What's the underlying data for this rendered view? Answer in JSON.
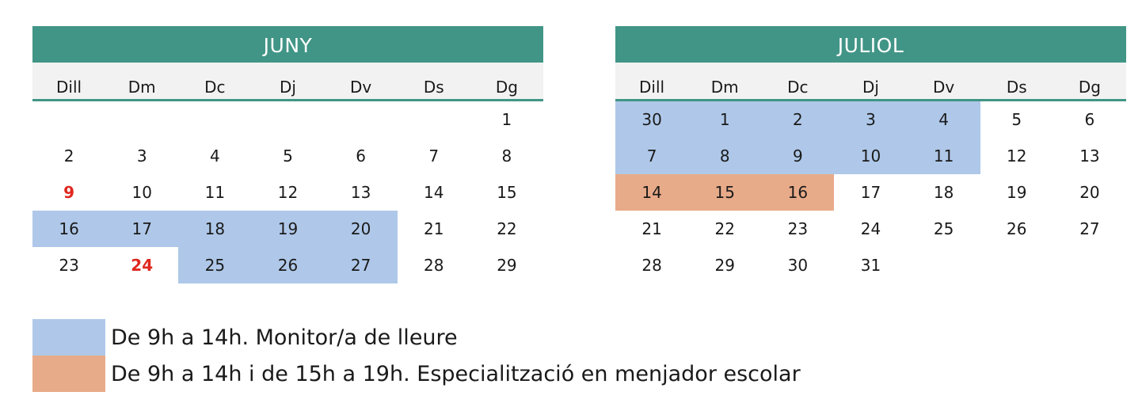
{
  "colors": {
    "header": "#419586",
    "monitor": "#afc8e9",
    "specialization": "#e8ab89",
    "holiday": "#e0271f",
    "text": "#1a1a1a"
  },
  "weekdays": [
    "Dill",
    "Dm",
    "Dc",
    "Dj",
    "Dv",
    "Ds",
    "Dg"
  ],
  "calendars": [
    {
      "title": "JUNY",
      "weeks": [
        [
          {
            "d": ""
          },
          {
            "d": ""
          },
          {
            "d": ""
          },
          {
            "d": ""
          },
          {
            "d": ""
          },
          {
            "d": ""
          },
          {
            "d": "1"
          }
        ],
        [
          {
            "d": "2"
          },
          {
            "d": "3"
          },
          {
            "d": "4"
          },
          {
            "d": "5"
          },
          {
            "d": "6"
          },
          {
            "d": "7"
          },
          {
            "d": "8"
          }
        ],
        [
          {
            "d": "9",
            "h": true
          },
          {
            "d": "10"
          },
          {
            "d": "11"
          },
          {
            "d": "12"
          },
          {
            "d": "13"
          },
          {
            "d": "14"
          },
          {
            "d": "15"
          }
        ],
        [
          {
            "d": "16",
            "t": "monitor"
          },
          {
            "d": "17",
            "t": "monitor"
          },
          {
            "d": "18",
            "t": "monitor"
          },
          {
            "d": "19",
            "t": "monitor"
          },
          {
            "d": "20",
            "t": "monitor"
          },
          {
            "d": "21"
          },
          {
            "d": "22"
          }
        ],
        [
          {
            "d": "23"
          },
          {
            "d": "24",
            "h": true
          },
          {
            "d": "25",
            "t": "monitor"
          },
          {
            "d": "26",
            "t": "monitor"
          },
          {
            "d": "27",
            "t": "monitor"
          },
          {
            "d": "28"
          },
          {
            "d": "29"
          }
        ]
      ]
    },
    {
      "title": "JULIOL",
      "weeks": [
        [
          {
            "d": "30",
            "t": "monitor"
          },
          {
            "d": "1",
            "t": "monitor"
          },
          {
            "d": "2",
            "t": "monitor"
          },
          {
            "d": "3",
            "t": "monitor"
          },
          {
            "d": "4",
            "t": "monitor"
          },
          {
            "d": "5"
          },
          {
            "d": "6"
          }
        ],
        [
          {
            "d": "7",
            "t": "monitor"
          },
          {
            "d": "8",
            "t": "monitor"
          },
          {
            "d": "9",
            "t": "monitor"
          },
          {
            "d": "10",
            "t": "monitor"
          },
          {
            "d": "11",
            "t": "monitor"
          },
          {
            "d": "12"
          },
          {
            "d": "13"
          }
        ],
        [
          {
            "d": "14",
            "t": "specialization"
          },
          {
            "d": "15",
            "t": "specialization"
          },
          {
            "d": "16",
            "t": "specialization"
          },
          {
            "d": "17"
          },
          {
            "d": "18"
          },
          {
            "d": "19"
          },
          {
            "d": "20"
          }
        ],
        [
          {
            "d": "21"
          },
          {
            "d": "22"
          },
          {
            "d": "23"
          },
          {
            "d": "24"
          },
          {
            "d": "25"
          },
          {
            "d": "26"
          },
          {
            "d": "27"
          }
        ],
        [
          {
            "d": "28"
          },
          {
            "d": "29"
          },
          {
            "d": "30"
          },
          {
            "d": "31"
          },
          {
            "d": ""
          },
          {
            "d": ""
          },
          {
            "d": ""
          }
        ]
      ]
    }
  ],
  "legend": [
    {
      "type": "monitor",
      "text": "De 9h a 14h. Monitor/a de lleure"
    },
    {
      "type": "specialization",
      "text": "De 9h a 14h i de 15h a 19h. Especialització en menjador escolar"
    }
  ]
}
